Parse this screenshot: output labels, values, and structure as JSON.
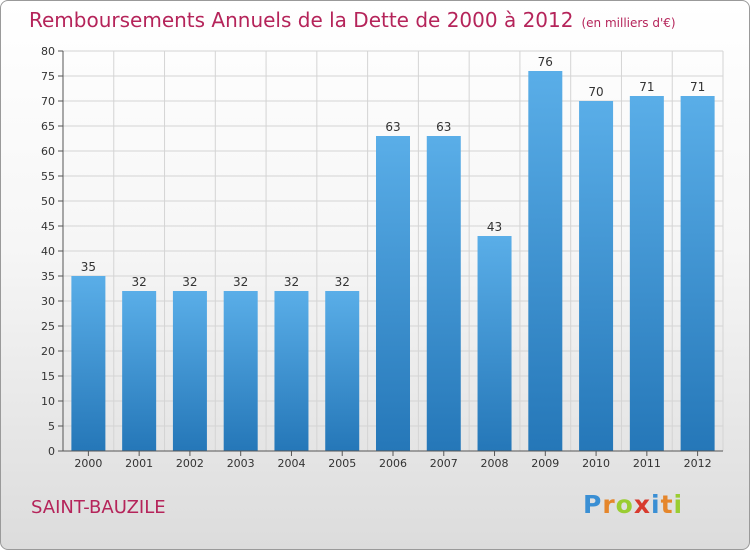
{
  "title": "Remboursements Annuels de la Dette de 2000 à 2012",
  "subtitle": "(en milliers d'€)",
  "commune": "SAINT-BAUZILE",
  "logo": {
    "letters": [
      "P",
      "r",
      "o",
      "x",
      "i",
      "t",
      "i"
    ],
    "colors": [
      "#3a8fd4",
      "#e5862b",
      "#9acd32",
      "#d83a2e",
      "#3a8fd4",
      "#e5862b",
      "#9acd32"
    ]
  },
  "chart_data": {
    "type": "bar",
    "categories": [
      "2000",
      "2001",
      "2002",
      "2003",
      "2004",
      "2005",
      "2006",
      "2007",
      "2008",
      "2009",
      "2010",
      "2011",
      "2012"
    ],
    "values": [
      35,
      32,
      32,
      32,
      32,
      32,
      63,
      63,
      43,
      76,
      70,
      71,
      71
    ],
    "ylim": [
      0,
      80
    ],
    "yticks": [
      0,
      5,
      10,
      15,
      20,
      25,
      30,
      35,
      40,
      45,
      50,
      55,
      60,
      65,
      70,
      75,
      80
    ],
    "grid": true,
    "bar_color_top": "#5aaee8",
    "bar_color_bottom": "#2577b8"
  }
}
